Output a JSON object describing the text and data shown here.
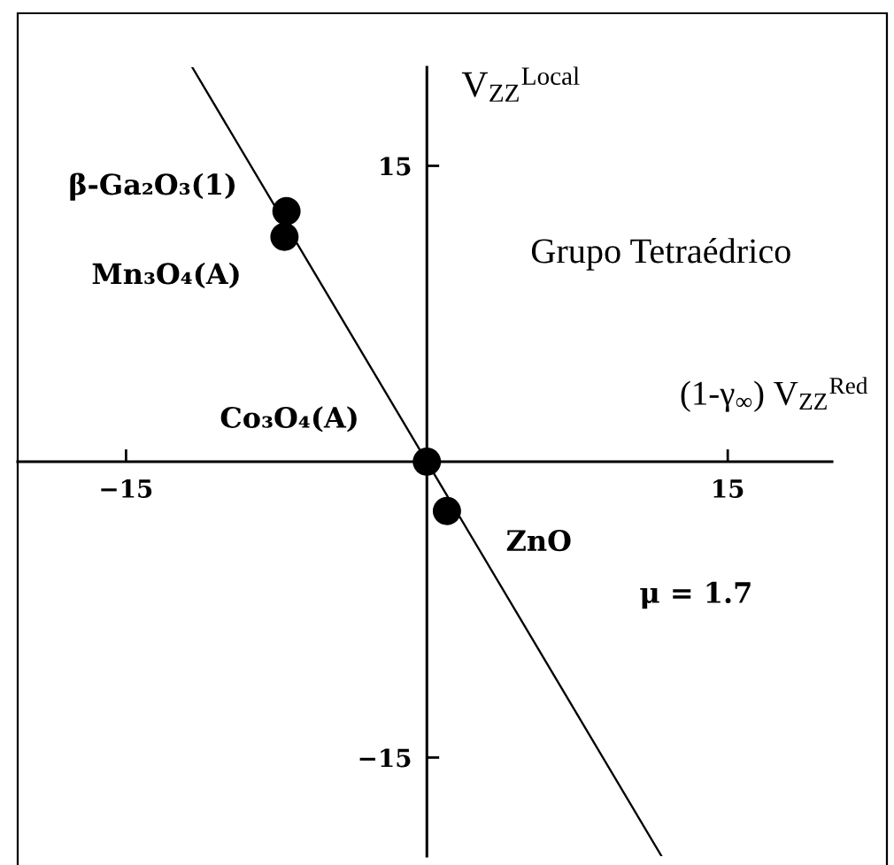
{
  "chart_data": {
    "type": "scatter",
    "xlabel": "(1-γ$_{∞}$) V$_{ZZ}$$^{Red}$",
    "ylabel": "V$_{ZZ}$$^{Local}$",
    "xlim": [
      -20.4,
      20.2
    ],
    "ylim": [
      -20,
      20
    ],
    "xticks": [
      {
        "value": -15,
        "label": "−15"
      },
      15
    ],
    "yticks": [
      {
        "value": -15,
        "label": "−15"
      },
      15
    ],
    "marker": "circle",
    "series": [
      {
        "color": "#000000",
        "x": [
          -7.0,
          -7.1,
          0,
          1.0
        ],
        "values": [
          12.7,
          11.4,
          0,
          -2.5
        ]
      },
      {
        "type": "line",
        "color": "#000000",
        "x": [
          -11.7,
          11.7
        ],
        "values": [
          20,
          -20
        ],
        "marker": "none",
        "line_style": "solid"
      }
    ],
    "annotations": [
      {
        "text": "β-Ga₂O₃(1)",
        "x": -7.0,
        "y": 12.7
      },
      {
        "text": "Mn₃O₄(A)",
        "x": -7.1,
        "y": 11.4
      },
      {
        "text": "Co₃O₄(A)",
        "x": 0,
        "y": 0
      },
      {
        "text": "ZnO",
        "x": 1.0,
        "y": -2.5
      },
      "Grupo Tetraédrico",
      "μ = 1.7"
    ]
  }
}
